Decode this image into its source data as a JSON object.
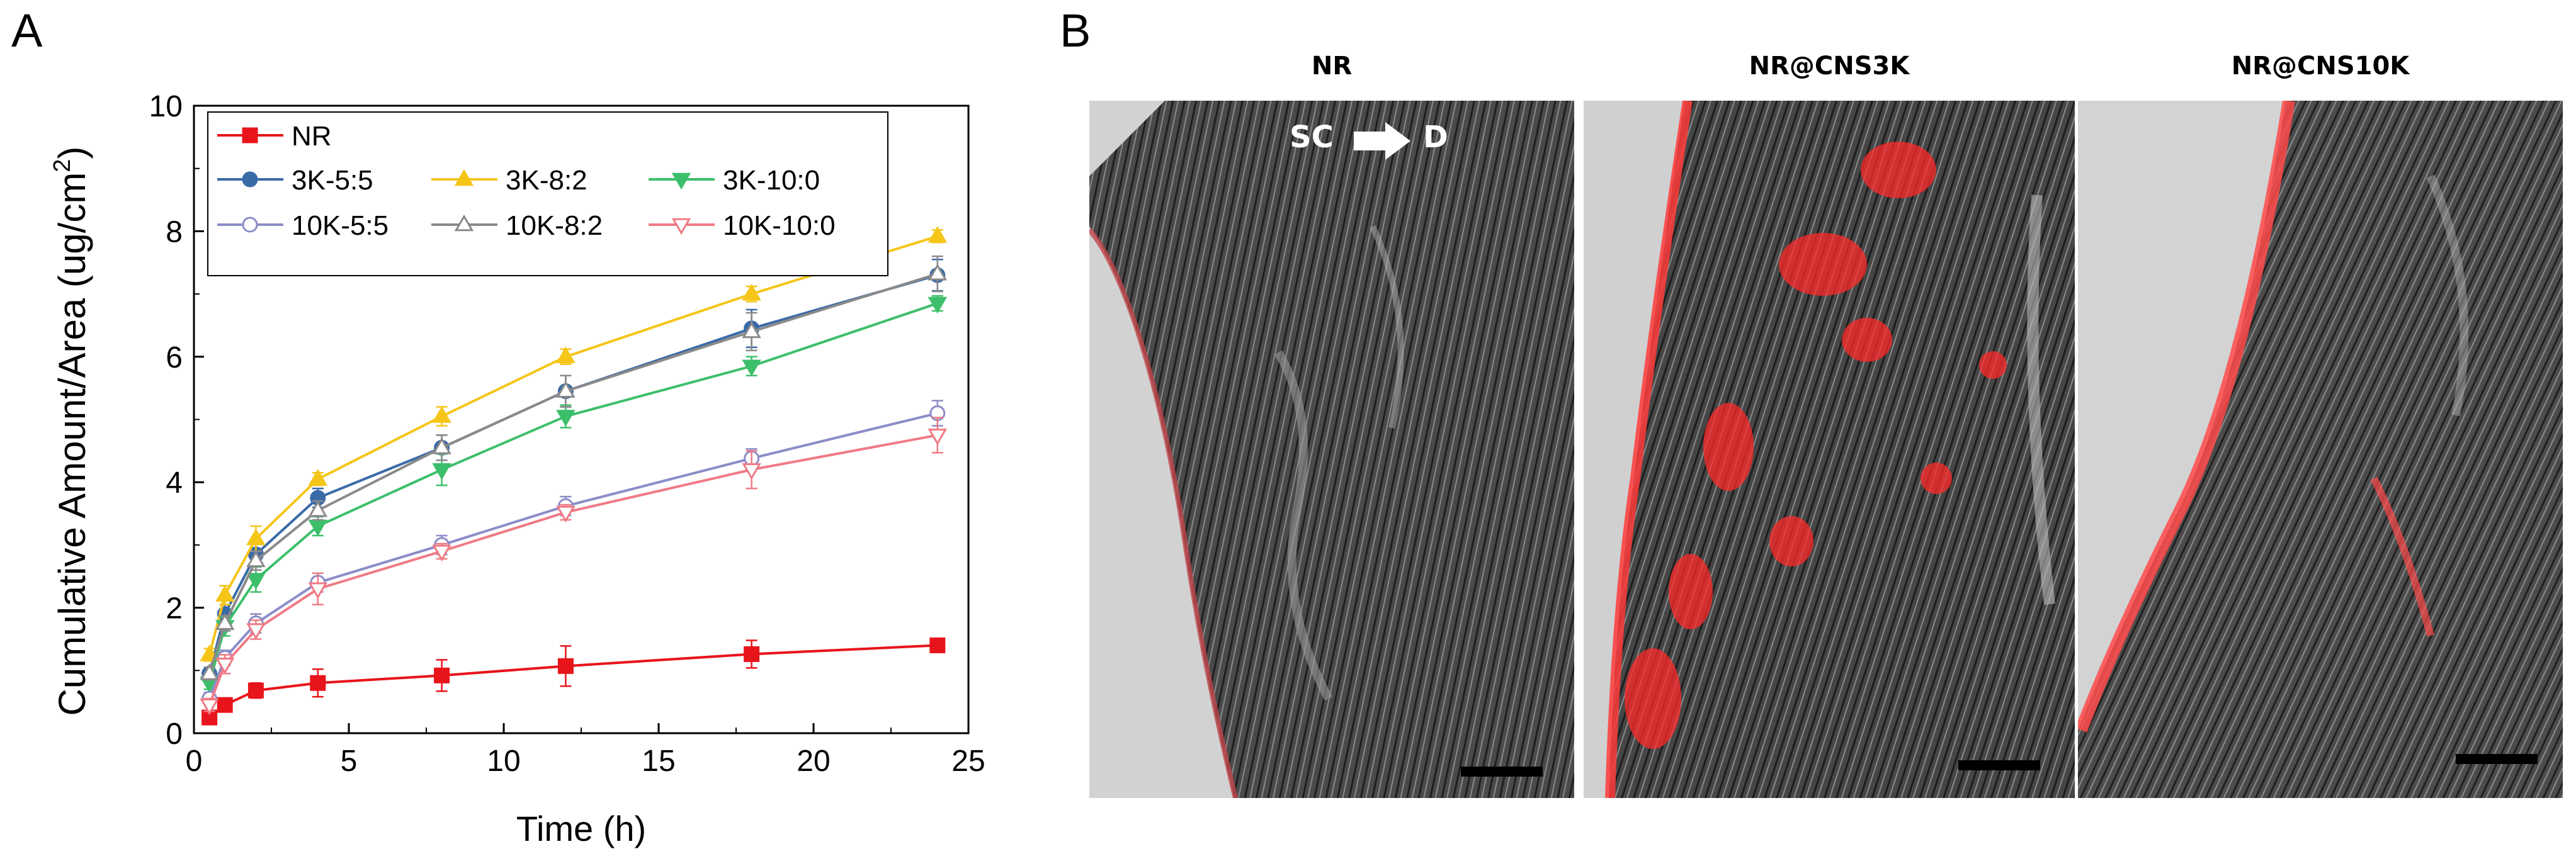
{
  "panels": {
    "a_label": "A",
    "b_label": "B"
  },
  "chart_data": {
    "type": "line",
    "xlabel": "Time (h)",
    "ylabel_main": "Cumulative Amount/Area (ug/cm",
    "ylabel_sup": "2",
    "ylabel_close": ")",
    "xlim": [
      0,
      25
    ],
    "ylim": [
      0,
      10
    ],
    "xticks": [
      0,
      5,
      10,
      15,
      20,
      25
    ],
    "yticks": [
      0,
      2,
      4,
      6,
      8,
      10
    ],
    "grid": false,
    "legend_position": "top-left",
    "x": [
      0.5,
      1,
      2,
      4,
      8,
      12,
      18,
      24
    ],
    "series": [
      {
        "name": "NR",
        "color": "#e8141b",
        "marker": "square",
        "filled": true,
        "values": [
          0.25,
          0.45,
          0.68,
          0.8,
          0.92,
          1.07,
          1.26,
          1.4
        ],
        "errors": [
          0.08,
          0.1,
          0.12,
          0.22,
          0.25,
          0.32,
          0.22,
          0.06
        ]
      },
      {
        "name": "3K-5:5",
        "color": "#3a6aa8",
        "marker": "circle",
        "filled": true,
        "values": [
          0.95,
          1.9,
          2.85,
          3.75,
          4.55,
          5.45,
          6.45,
          7.3
        ],
        "errors": [
          0.1,
          0.15,
          0.2,
          0.15,
          0.2,
          0.25,
          0.3,
          0.25
        ]
      },
      {
        "name": "3K-8:2",
        "color": "#f5c518",
        "marker": "triangle-up",
        "filled": true,
        "values": [
          1.25,
          2.2,
          3.1,
          4.05,
          5.05,
          6.0,
          7.0,
          7.92
        ],
        "errors": [
          0.1,
          0.15,
          0.2,
          0.1,
          0.15,
          0.12,
          0.12,
          0.1
        ]
      },
      {
        "name": "3K-10:0",
        "color": "#3cbf6a",
        "marker": "triangle-down",
        "filled": true,
        "values": [
          0.8,
          1.7,
          2.45,
          3.3,
          4.2,
          5.05,
          5.85,
          6.85
        ],
        "errors": [
          0.1,
          0.15,
          0.2,
          0.15,
          0.25,
          0.18,
          0.15,
          0.12
        ]
      },
      {
        "name": "10K-5:5",
        "color": "#8c8cc8",
        "marker": "circle",
        "filled": false,
        "values": [
          0.55,
          1.2,
          1.75,
          2.4,
          3.0,
          3.62,
          4.38,
          5.1
        ],
        "errors": [
          0.1,
          0.12,
          0.15,
          0.15,
          0.15,
          0.15,
          0.15,
          0.2
        ]
      },
      {
        "name": "10K-8:2",
        "color": "#8a8a8a",
        "marker": "triangle-up",
        "filled": false,
        "values": [
          0.95,
          1.75,
          2.75,
          3.55,
          4.55,
          5.45,
          6.4,
          7.32
        ],
        "errors": [
          0.1,
          0.12,
          0.15,
          0.15,
          0.2,
          0.25,
          0.3,
          0.28
        ]
      },
      {
        "name": "10K-10:0",
        "color": "#f07a85",
        "marker": "triangle-down",
        "filled": false,
        "values": [
          0.45,
          1.1,
          1.65,
          2.3,
          2.9,
          3.52,
          4.2,
          4.75
        ],
        "errors": [
          0.1,
          0.15,
          0.15,
          0.25,
          0.12,
          0.12,
          0.3,
          0.28
        ]
      }
    ]
  },
  "micrographs": [
    {
      "title": "NR"
    },
    {
      "title": "NR@CNS3K"
    },
    {
      "title": "NR@CNS10K"
    }
  ],
  "direction_label": {
    "from": "SC",
    "to": "D"
  },
  "colors": {
    "tissue_dark": "#3a3a3a",
    "fluorescence": "#ff2a2a",
    "background_gray": "#cfcfcf"
  }
}
